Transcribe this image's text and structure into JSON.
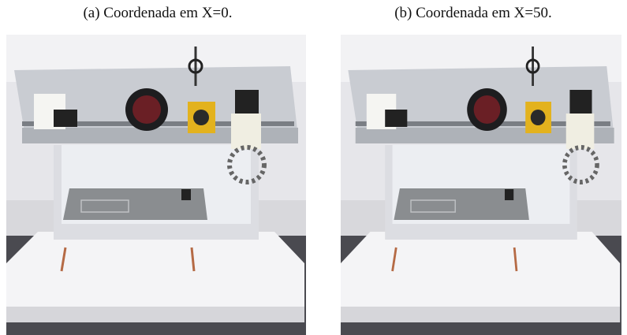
{
  "figure": {
    "subfigures": [
      {
        "caption": "(a) Coordenada em X=0."
      },
      {
        "caption": "(b) Coordenada em X=50."
      }
    ]
  }
}
